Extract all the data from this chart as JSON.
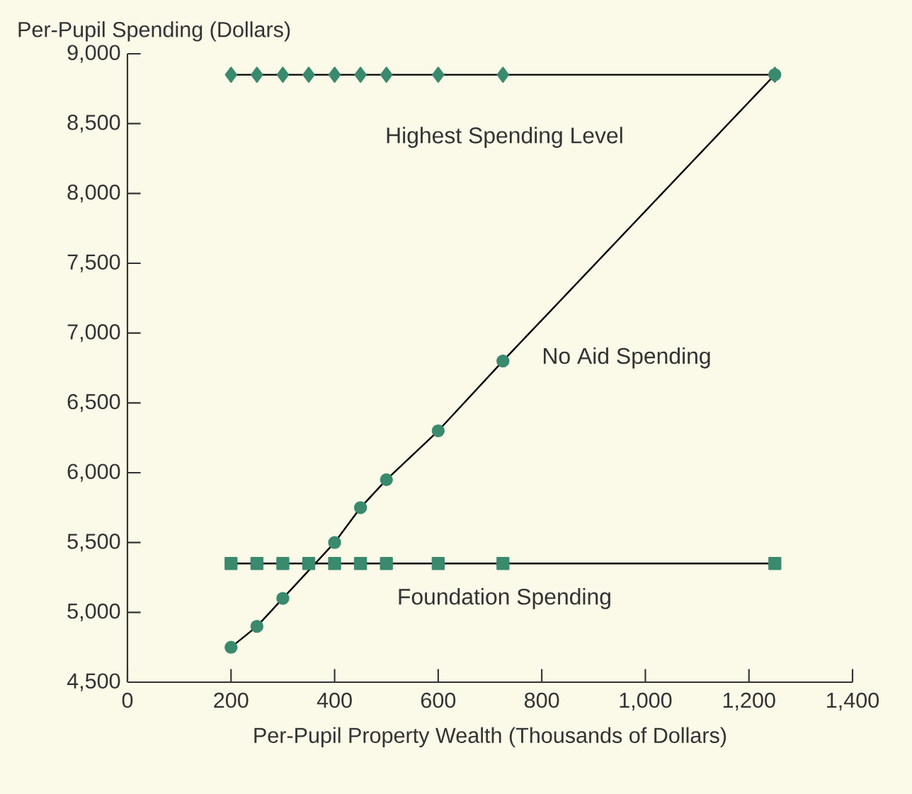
{
  "chart_data": {
    "type": "line",
    "xlabel": "Per-Pupil Property Wealth (Thousands of Dollars)",
    "ylabel": "Per-Pupil Spending (Dollars)",
    "xlim": [
      0,
      1400
    ],
    "xticks": [
      0,
      200,
      400,
      600,
      800,
      {
        "value": 1000,
        "label": "1,000"
      },
      {
        "value": 1200,
        "label": "1,200"
      },
      {
        "value": 1400,
        "label": "1,400"
      }
    ],
    "ylim": [
      4500,
      9000
    ],
    "yticks": [
      {
        "value": 4500,
        "label": "4,500"
      },
      {
        "value": 5000,
        "label": "5,000"
      },
      {
        "value": 5500,
        "label": "5,500"
      },
      {
        "value": 6000,
        "label": "6,000"
      },
      {
        "value": 6500,
        "label": "6,500"
      },
      {
        "value": 7000,
        "label": "7,000"
      },
      {
        "value": 7500,
        "label": "7,500"
      },
      {
        "value": 8000,
        "label": "8,000"
      },
      {
        "value": 8500,
        "label": "8,500"
      },
      {
        "value": 9000,
        "label": "9,000"
      }
    ],
    "grid": false,
    "line_style": "solid",
    "series": [
      {
        "color": "#3a8a6e",
        "marker": "diamond",
        "x": [
          200,
          250,
          300,
          350,
          400,
          450,
          500,
          600,
          725,
          1250
        ],
        "values": [
          8850,
          8850,
          8850,
          8850,
          8850,
          8850,
          8850,
          8850,
          8850,
          8850
        ]
      },
      {
        "color": "#3a8a6e",
        "marker": "square",
        "x": [
          200,
          250,
          300,
          350,
          400,
          450,
          500,
          600,
          725,
          1250
        ],
        "values": [
          5350,
          5350,
          5350,
          5350,
          5350,
          5350,
          5350,
          5350,
          5350,
          5350
        ]
      },
      {
        "color": "#3a8a6e",
        "marker": "circle",
        "x": [
          200,
          250,
          300,
          400,
          450,
          500,
          600,
          725,
          1250
        ],
        "values": [
          4750,
          4900,
          5100,
          5500,
          5750,
          5950,
          6300,
          6800,
          8850
        ]
      }
    ],
    "annotations": [
      "Highest Spending Level",
      "No Aid Spending",
      "Foundation Spending"
    ]
  }
}
